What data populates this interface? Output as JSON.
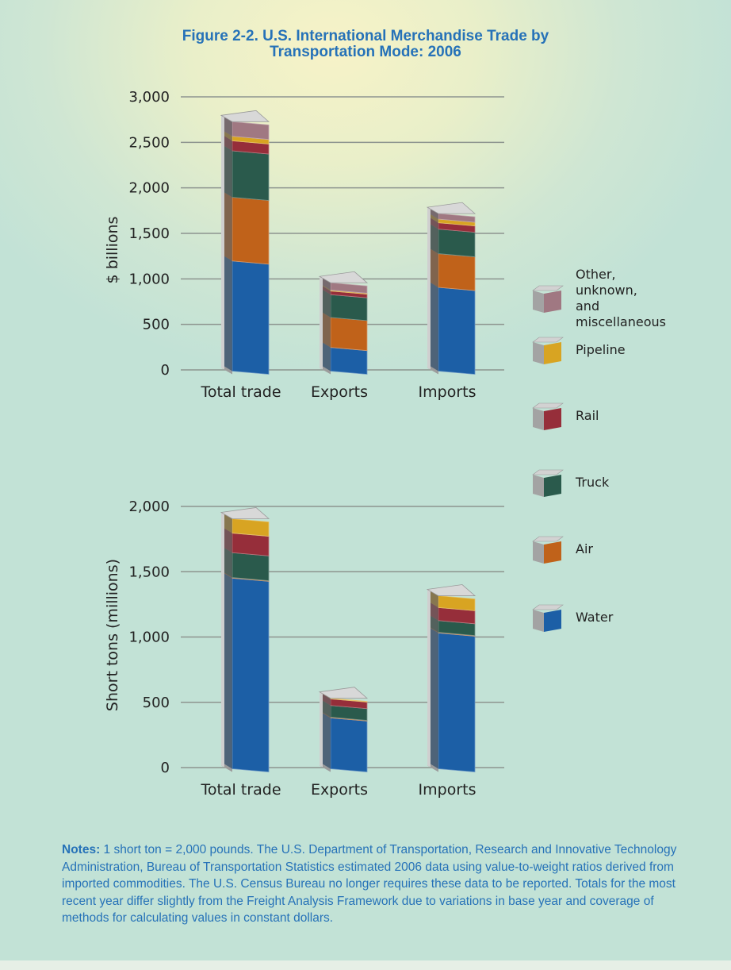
{
  "figure": {
    "title_line1": "Figure 2-2.  U.S. International Merchandise Trade by",
    "title_line2": "Transportation Mode: 2006"
  },
  "legend": [
    {
      "label": "Other, unknown,\nand miscellaneous",
      "color": "#a07882"
    },
    {
      "label": "Pipeline",
      "color": "#d8a422"
    },
    {
      "label": "Rail",
      "color": "#962e3a"
    },
    {
      "label": "Truck",
      "color": "#2a5a4c"
    },
    {
      "label": "Air",
      "color": "#c0621a"
    },
    {
      "label": "Water",
      "color": "#1c5fa6"
    }
  ],
  "chart_data": [
    {
      "type": "bar",
      "stacked": true,
      "title": "",
      "xlabel": "",
      "ylabel": "$ billions",
      "ylim": [
        0,
        3000
      ],
      "yticks": [
        "0",
        "500",
        "1,000",
        "1,500",
        "2,000",
        "2,500",
        "3,000"
      ],
      "categories": [
        "Total trade",
        "Exports",
        "Imports"
      ],
      "series": [
        {
          "name": "Water",
          "values": [
            1210,
            260,
            920
          ],
          "color": "#1c5fa6"
        },
        {
          "name": "Air",
          "values": [
            700,
            330,
            370
          ],
          "color": "#c0621a"
        },
        {
          "name": "Truck",
          "values": [
            510,
            250,
            270
          ],
          "color": "#2a5a4c"
        },
        {
          "name": "Rail",
          "values": [
            110,
            40,
            70
          ],
          "color": "#962e3a"
        },
        {
          "name": "Pipeline",
          "values": [
            50,
            10,
            40
          ],
          "color": "#d8a422"
        },
        {
          "name": "Other, unknown, and miscellaneous",
          "values": [
            160,
            80,
            60
          ],
          "color": "#a07882"
        }
      ],
      "grid": true
    },
    {
      "type": "bar",
      "stacked": true,
      "title": "",
      "xlabel": "",
      "ylabel": "Short tons (millions)",
      "ylim": [
        0,
        2000
      ],
      "yticks": [
        "0",
        "500",
        "1,000",
        "1,500",
        "2,000"
      ],
      "categories": [
        "Total trade",
        "Exports",
        "Imports"
      ],
      "series": [
        {
          "name": "Water",
          "values": [
            1460,
            390,
            1040
          ],
          "color": "#1c5fa6"
        },
        {
          "name": "Air",
          "values": [
            5,
            5,
            5
          ],
          "color": "#c0621a"
        },
        {
          "name": "Truck",
          "values": [
            190,
            90,
            90
          ],
          "color": "#2a5a4c"
        },
        {
          "name": "Rail",
          "values": [
            150,
            50,
            100
          ],
          "color": "#962e3a"
        },
        {
          "name": "Pipeline",
          "values": [
            110,
            5,
            90
          ],
          "color": "#d8a422"
        },
        {
          "name": "Other, unknown, and miscellaneous",
          "values": [
            0,
            0,
            0
          ],
          "color": "#a07882"
        }
      ],
      "grid": true
    }
  ],
  "notes": {
    "label": "Notes:",
    "text": " 1 short ton = 2,000 pounds.  The U.S. Department of Transportation, Research and Innovative Technology Administration, Bureau of Transportation Statistics estimated 2006 data using value-to-weight ratios derived from imported commodities. The U.S. Census Bureau no longer requires these data to be reported.  Totals for the most recent year differ slightly from the Freight Analysis Framework due to variations in base year and coverage of methods for calculating values in constant dollars."
  }
}
